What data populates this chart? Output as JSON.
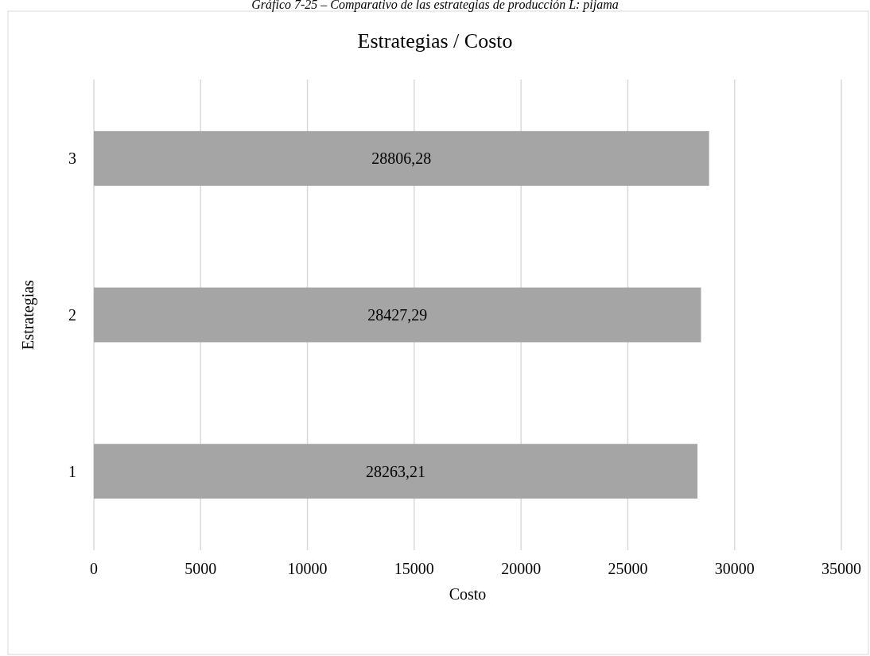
{
  "chart_data": {
    "type": "bar",
    "orientation": "horizontal",
    "title": "Estrategias / Costo",
    "xlabel": "Costo",
    "ylabel": "Estrategias",
    "annotations": [
      "Gráfico 7-25 – Comparativo de las estrategias de producción L: pijama"
    ],
    "categories": [
      "3",
      "2",
      "1"
    ],
    "values": [
      28806.28,
      28427.29,
      28263.21
    ],
    "value_labels": [
      "28806,28",
      "28427,29",
      "28263,21"
    ],
    "color": "#a5a5a5",
    "xlim": [
      0,
      35000
    ],
    "xticks": [
      0,
      5000,
      10000,
      15000,
      20000,
      25000,
      30000,
      35000
    ],
    "grid": "x"
  }
}
